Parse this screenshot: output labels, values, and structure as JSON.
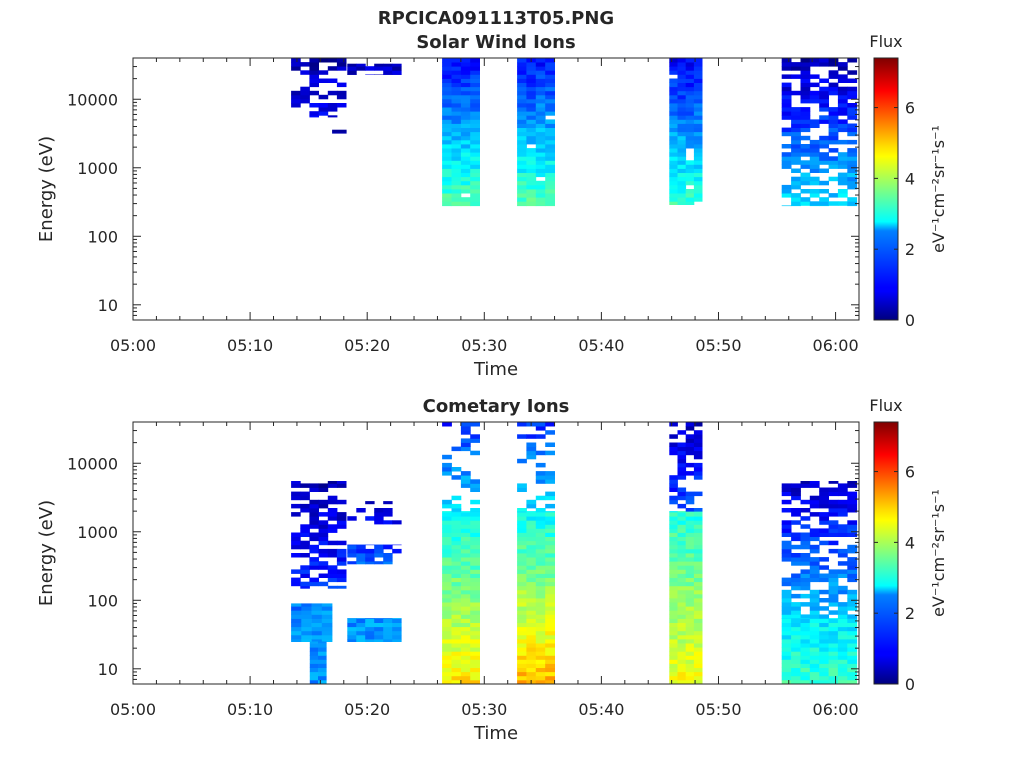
{
  "figure": {
    "filename": "RPCICA091113T05.PNG"
  },
  "chart_data": [
    {
      "type": "heatmap",
      "title": "Solar Wind Ions",
      "xlabel": "Time",
      "ylabel": "Energy (eV)",
      "x_ticks": [
        "05:00",
        "05:10",
        "05:20",
        "05:30",
        "05:40",
        "05:50",
        "06:00"
      ],
      "x_range_min": [
        0,
        62
      ],
      "y_scale": "log",
      "y_ticks": [
        10,
        100,
        1000,
        10000
      ],
      "y_tick_labels": [
        "10",
        "100",
        "1000",
        "10000"
      ],
      "y_range_eV": [
        6,
        40000
      ],
      "colorbar": {
        "label": "Flux",
        "unit": "eV⁻¹cm⁻²sr⁻¹s⁻¹",
        "range": [
          0,
          7.4
        ],
        "ticks": [
          "0",
          "2",
          "4",
          "6"
        ],
        "colormap": "jet"
      },
      "blocks": [
        {
          "time_min": [
            13.5,
            18.2
          ],
          "energy_eV": [
            5500,
            40000
          ],
          "flux": [
            0.3,
            0.8
          ],
          "density": 0.55,
          "description": "sparse narrow bands"
        },
        {
          "time_min": [
            17.0,
            18.2
          ],
          "energy_eV": [
            3200,
            3600
          ],
          "flux": [
            0.5,
            0.5
          ],
          "density": 1.0
        },
        {
          "time_min": [
            18.3,
            22.9
          ],
          "energy_eV": [
            23000,
            33000
          ],
          "flux": [
            0.4,
            0.6
          ],
          "density": 0.6
        },
        {
          "time_min": [
            26.4,
            29.6
          ],
          "energy_eV": [
            280,
            40000
          ],
          "flux": [
            1.0,
            3.4
          ],
          "density": 0.98
        },
        {
          "time_min": [
            32.8,
            36.0
          ],
          "energy_eV": [
            280,
            40000
          ],
          "flux": [
            1.0,
            3.4
          ],
          "density": 0.98
        },
        {
          "time_min": [
            45.8,
            48.6
          ],
          "energy_eV": [
            290,
            40000
          ],
          "flux": [
            0.8,
            3.2
          ],
          "density": 0.95
        },
        {
          "time_min": [
            55.4,
            61.8
          ],
          "energy_eV": [
            280,
            40000
          ],
          "flux": [
            0.3,
            2.6
          ],
          "density": 0.7
        }
      ]
    },
    {
      "type": "heatmap",
      "title": "Cometary Ions",
      "xlabel": "Time",
      "ylabel": "Energy (eV)",
      "x_ticks": [
        "05:00",
        "05:10",
        "05:20",
        "05:30",
        "05:40",
        "05:50",
        "06:00"
      ],
      "x_range_min": [
        0,
        62
      ],
      "y_scale": "log",
      "y_ticks": [
        10,
        100,
        1000,
        10000
      ],
      "y_tick_labels": [
        "10",
        "100",
        "1000",
        "10000"
      ],
      "y_range_eV": [
        6,
        40000
      ],
      "colorbar": {
        "label": "Flux",
        "unit": "eV⁻¹cm⁻²sr⁻¹s⁻¹",
        "range": [
          0,
          7.4
        ],
        "ticks": [
          "0",
          "2",
          "4",
          "6"
        ],
        "colormap": "jet"
      },
      "blocks": [
        {
          "time_min": [
            13.5,
            18.2
          ],
          "energy_eV": [
            150,
            5500
          ],
          "flux": [
            0.4,
            1.2
          ],
          "density": 0.6
        },
        {
          "time_min": [
            13.5,
            17.0
          ],
          "energy_eV": [
            25,
            90
          ],
          "flux": [
            1.8,
            2.2
          ],
          "density": 1.0
        },
        {
          "time_min": [
            15.1,
            16.5
          ],
          "energy_eV": [
            6,
            25
          ],
          "flux": [
            2.0,
            2.0
          ],
          "density": 1.0
        },
        {
          "time_min": [
            18.3,
            22.9
          ],
          "energy_eV": [
            25,
            55
          ],
          "flux": [
            2.0,
            2.0
          ],
          "density": 1.0
        },
        {
          "time_min": [
            18.3,
            22.9
          ],
          "energy_eV": [
            340,
            650
          ],
          "flux": [
            1.2,
            1.6
          ],
          "density": 0.8
        },
        {
          "time_min": [
            18.3,
            22.9
          ],
          "energy_eV": [
            1300,
            2800
          ],
          "flux": [
            0.6,
            0.8
          ],
          "density": 0.4
        },
        {
          "time_min": [
            26.4,
            29.6
          ],
          "energy_eV": [
            6,
            2000
          ],
          "flux": [
            2.8,
            4.8
          ],
          "density": 1.0
        },
        {
          "time_min": [
            26.4,
            29.6
          ],
          "energy_eV": [
            2000,
            40000
          ],
          "flux": [
            1.2,
            2.6
          ],
          "density": 0.4
        },
        {
          "time_min": [
            32.8,
            36.0
          ],
          "energy_eV": [
            6,
            2000
          ],
          "flux": [
            2.8,
            5.2
          ],
          "density": 1.0
        },
        {
          "time_min": [
            32.8,
            36.0
          ],
          "energy_eV": [
            2000,
            40000
          ],
          "flux": [
            1.2,
            2.6
          ],
          "density": 0.4
        },
        {
          "time_min": [
            45.8,
            48.6
          ],
          "energy_eV": [
            6,
            2000
          ],
          "flux": [
            3.0,
            4.6
          ],
          "density": 1.0
        },
        {
          "time_min": [
            45.8,
            48.6
          ],
          "energy_eV": [
            2000,
            40000
          ],
          "flux": [
            0.5,
            1.5
          ],
          "density": 0.55
        },
        {
          "time_min": [
            55.4,
            61.8
          ],
          "energy_eV": [
            6,
            55
          ],
          "flux": [
            2.6,
            3.2
          ],
          "density": 1.0
        },
        {
          "time_min": [
            55.4,
            61.8
          ],
          "energy_eV": [
            55,
            5500
          ],
          "flux": [
            0.5,
            2.4
          ],
          "density": 0.7
        }
      ]
    }
  ]
}
